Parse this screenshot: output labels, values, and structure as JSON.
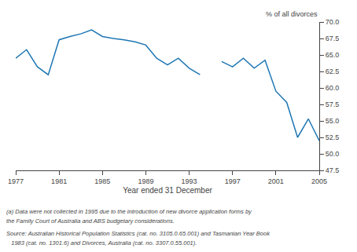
{
  "chart_data": {
    "type": "line",
    "x_label": "Year ended 31 December",
    "y_label": "% of all divorces",
    "x": [
      1977,
      1978,
      1979,
      1980,
      1981,
      1982,
      1983,
      1984,
      1985,
      1986,
      1987,
      1988,
      1989,
      1990,
      1991,
      1992,
      1993,
      1994,
      1995,
      1996,
      1997,
      1998,
      1999,
      2000,
      2001,
      2002,
      2003,
      2004,
      2005
    ],
    "values": [
      64.5,
      65.8,
      63.2,
      62.0,
      67.3,
      67.8,
      68.2,
      68.8,
      67.8,
      67.5,
      67.3,
      67.0,
      66.5,
      64.5,
      63.5,
      64.5,
      63.0,
      62.0,
      null,
      64.0,
      63.2,
      64.5,
      63.0,
      64.2,
      59.5,
      57.8,
      52.5,
      55.3,
      52.0
    ],
    "xlim": [
      1977,
      2005
    ],
    "xticks": [
      1977,
      1981,
      1985,
      1989,
      1993,
      1997,
      2001,
      2005
    ],
    "ylim": [
      47.5,
      70.0
    ],
    "yticks": [
      47.5,
      {
        "value": 50.0,
        "label": "50.0"
      },
      52.5,
      {
        "value": 55.0,
        "label": "55.0"
      },
      57.5,
      {
        "value": 60.0,
        "label": "60.0"
      },
      62.5,
      {
        "value": 65.0,
        "label": "65.0"
      },
      67.5,
      {
        "value": 70.0,
        "label": "70.0"
      }
    ],
    "grid": false,
    "annotations": [
      "(a) Data were not collected in 1995 due to the introduction of new divorce application forms by",
      "the Family Court of Australia and ABS budgetary considerations.",
      "Source: Australian Historical Population Statistics (cat. no. 3105.0.65.001) and Tasmanian Year Book",
      "   1983 (cat. no. 1301.6) and Divorces, Australia (cat. no. 3307.0.55.001)."
    ]
  }
}
